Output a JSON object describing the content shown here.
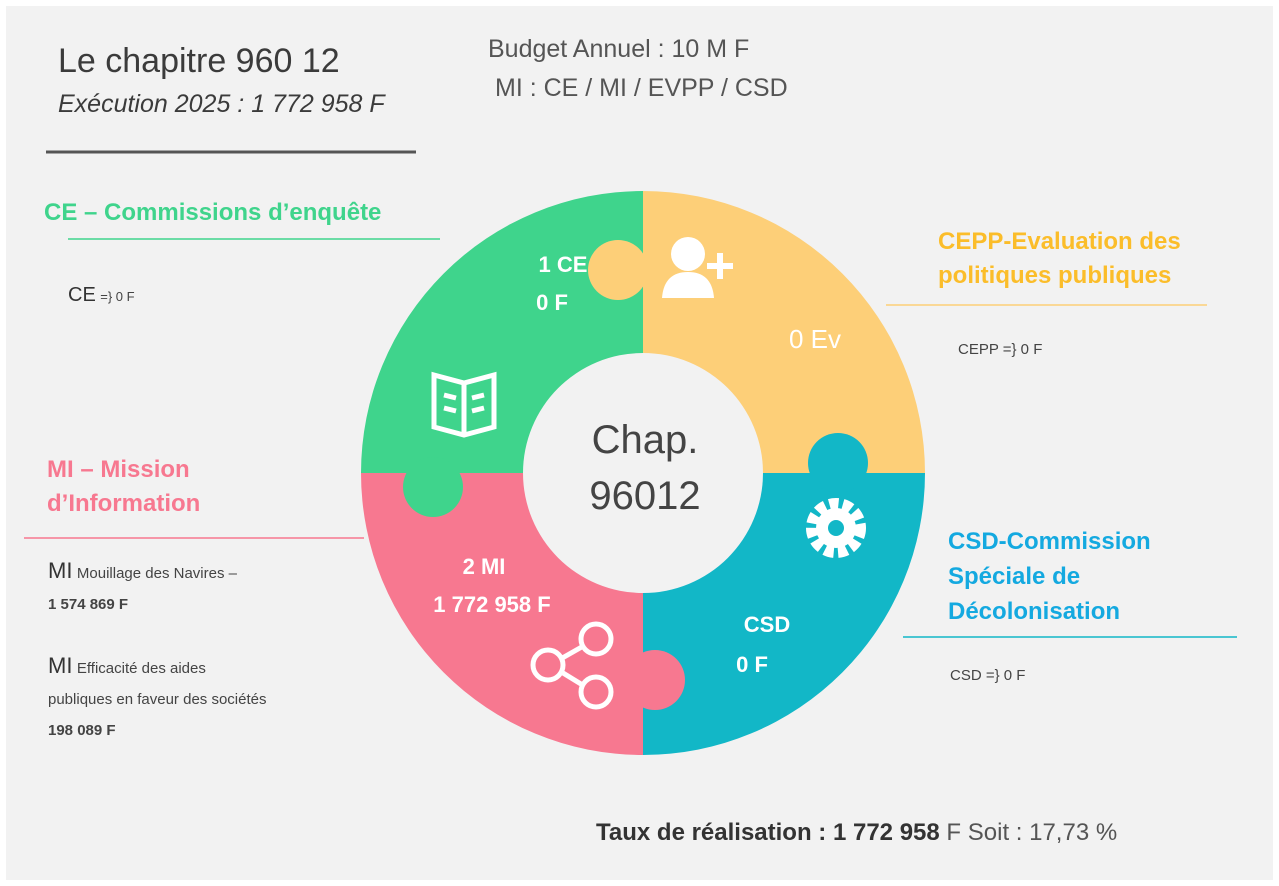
{
  "header": {
    "title": "Le chapitre 960 12",
    "subtitle": "Exécution 2025 : 1 772 958 F",
    "budget": "Budget Annuel : 10 M F",
    "types": "MI : CE / MI / EVPP / CSD"
  },
  "center": [
    "Chap.",
    "96012"
  ],
  "quadrants": [
    {
      "lines": [
        "1 CE",
        "0 F"
      ]
    },
    {
      "lines": [
        "0 Ev"
      ]
    },
    {
      "lines": [
        "CSD",
        "0 F"
      ]
    },
    {
      "lines": [
        "2 MI",
        "1 772 958 F"
      ]
    }
  ],
  "sections": {
    "ce": {
      "title": [
        "CE – Commissions d’enquête"
      ],
      "detail": {
        "code": "CE",
        "text": "=} 0 F"
      }
    },
    "cepp": {
      "title": [
        "CEPP-Evaluation des",
        "politiques publiques"
      ],
      "detail": {
        "text": "CEPP =} 0 F"
      }
    },
    "csd": {
      "title": [
        "CSD-Commission",
        "Spéciale de",
        "Décolonisation"
      ],
      "detail": {
        "text": "CSD =} 0 F"
      }
    },
    "mi": {
      "title": [
        "MI – Mission",
        "d’Information"
      ],
      "items": [
        {
          "code": "MI",
          "lines": [
            "Mouillage des Navires –"
          ],
          "amount": "1 574 869 F"
        },
        {
          "code": "MI",
          "lines": [
            "Efficacité des aides",
            "publiques en faveur des sociétés"
          ],
          "amount": "198 089 F"
        }
      ]
    }
  },
  "footer": {
    "label": "Taux de réalisation :",
    "amount": "1 772 958",
    "rest": "F Soit : 17,73 %"
  }
}
